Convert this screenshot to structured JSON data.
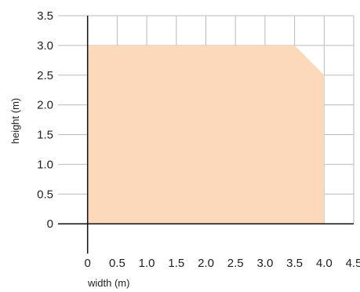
{
  "chart_data": {
    "type": "area",
    "title": "",
    "xlabel": "width (m)",
    "ylabel": "height (m)",
    "xlim": [
      -0.5,
      4.5
    ],
    "ylim": [
      -0.5,
      3.5
    ],
    "grid": true,
    "x_ticks": [
      "0",
      "0.5",
      "1.0",
      "1.5",
      "2.0",
      "2.5",
      "3.0",
      "3.5",
      "4.0",
      "4.5"
    ],
    "y_ticks": [
      "0",
      "0.5",
      "1.0",
      "1.5",
      "2.0",
      "2.5",
      "3.0",
      "3.5"
    ],
    "series": [
      {
        "x": [
          0,
          0,
          3.5,
          4.0,
          4.0
        ],
        "y": [
          0,
          3.0,
          3.0,
          2.5,
          0
        ]
      }
    ],
    "colors": {
      "fill": "#fdd9bc",
      "grid": "#bbbbbb",
      "axis": "#111111"
    }
  }
}
